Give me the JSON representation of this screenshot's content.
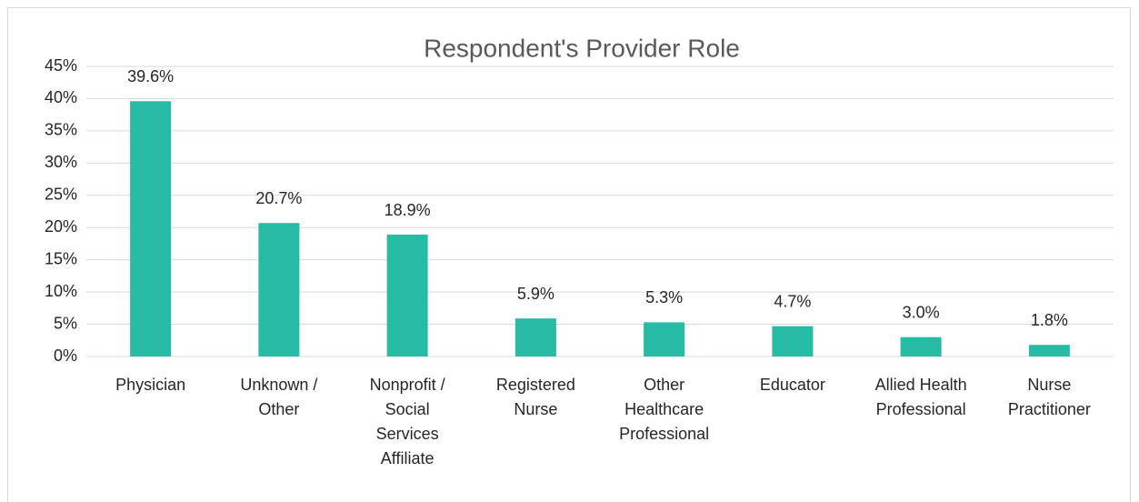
{
  "chart_data": {
    "type": "bar",
    "title": "Respondent's Provider Role",
    "categories": [
      "Physician",
      "Unknown /\nOther",
      "Nonprofit /\nSocial\nServices\nAffiliate",
      "Registered\nNurse",
      "Other\nHealthcare\nProfessional",
      "Educator",
      "Allied Health\nProfessional",
      "Nurse\nPractitioner"
    ],
    "values": [
      39.6,
      20.7,
      18.9,
      5.9,
      5.3,
      4.7,
      3.0,
      1.8
    ],
    "value_labels": [
      "39.6%",
      "20.7%",
      "18.9%",
      "5.9%",
      "5.3%",
      "4.7%",
      "3.0%",
      "1.8%"
    ],
    "color": "#26bba4",
    "ylim": [
      0,
      45
    ],
    "yticks": [
      {
        "value": 0,
        "label": "0%"
      },
      {
        "value": 5,
        "label": "5%"
      },
      {
        "value": 10,
        "label": "10%"
      },
      {
        "value": 15,
        "label": "15%"
      },
      {
        "value": 20,
        "label": "20%"
      },
      {
        "value": 25,
        "label": "25%"
      },
      {
        "value": 30,
        "label": "30%"
      },
      {
        "value": 35,
        "label": "35%"
      },
      {
        "value": 40,
        "label": "40%"
      },
      {
        "value": 45,
        "label": "45%"
      }
    ],
    "grid": true
  }
}
